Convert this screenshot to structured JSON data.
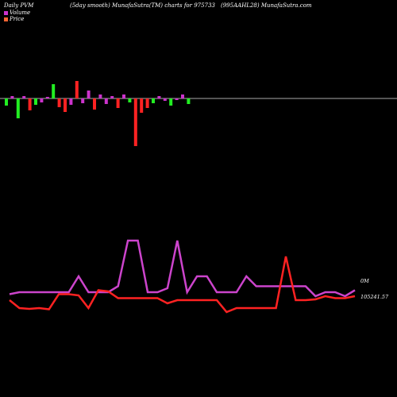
{
  "header": {
    "left": "Daily PVM",
    "center": "(5day smooth) MunafaSutra(TM) charts for 975733",
    "right": "(995AAHL28) MunafaSutra.com"
  },
  "legend": [
    {
      "label": "Volume",
      "color": "#cc33cc"
    },
    {
      "label": "Price",
      "color": "#ff6633"
    }
  ],
  "colors": {
    "baseline": "#aaaaaa",
    "volume_up": "#cc33cc",
    "volume_down_red": "#ff2222",
    "volume_down_green": "#22ee22",
    "volume_line": "#cc44cc",
    "price_line": "#ff2222"
  },
  "chart_data": [
    {
      "type": "bar",
      "title": "PVM",
      "colors": [
        "green",
        "magenta",
        "green",
        "magenta",
        "red",
        "green",
        "magenta",
        "magenta",
        "green",
        "red",
        "red",
        "magenta",
        "red",
        "magenta",
        "magenta",
        "red",
        "magenta",
        "magenta",
        "magenta",
        "red",
        "magenta",
        "green",
        "red",
        "red",
        "red",
        "green",
        "magenta",
        "magenta",
        "green",
        "magenta",
        "magenta",
        "green"
      ],
      "values": [
        -9,
        3,
        -25,
        3,
        -15,
        -8,
        -5,
        2,
        18,
        -11,
        -17,
        -8,
        22,
        -6,
        10,
        -14,
        5,
        -7,
        3,
        -12,
        5,
        -5,
        -60,
        -18,
        -12,
        -6,
        3,
        -3,
        -9,
        -2,
        5,
        -7
      ]
    },
    {
      "type": "line",
      "series": [
        {
          "name": "Volume",
          "values": [
            55,
            60,
            60,
            60,
            60,
            60,
            60,
            100,
            60,
            60,
            60,
            75,
            190,
            190,
            60,
            60,
            70,
            190,
            60,
            100,
            100,
            60,
            60,
            60,
            100,
            75,
            75,
            75,
            75,
            75,
            75,
            50,
            60,
            60,
            50,
            65
          ]
        },
        {
          "name": "Price",
          "values": [
            40,
            20,
            18,
            20,
            17,
            55,
            55,
            52,
            20,
            65,
            62,
            45,
            45,
            45,
            45,
            45,
            32,
            40,
            40,
            40,
            40,
            40,
            10,
            20,
            20,
            20,
            20,
            20,
            150,
            40,
            40,
            42,
            50,
            45,
            45,
            50
          ]
        }
      ],
      "annotations": [
        "0M",
        "105241.57"
      ]
    }
  ]
}
